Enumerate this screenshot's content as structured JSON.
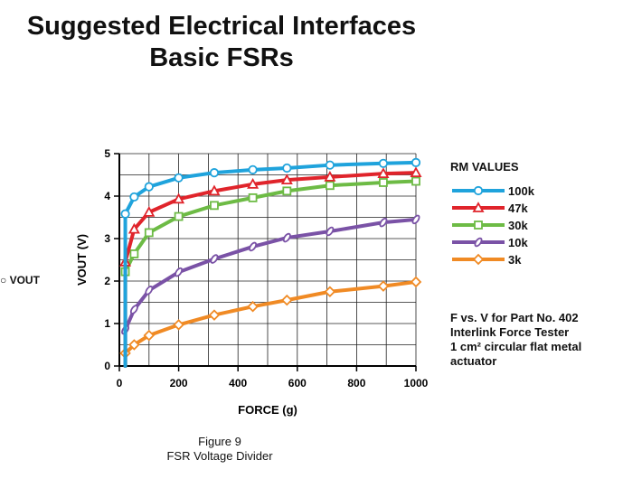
{
  "title_line1": "Suggested Electrical Interfaces",
  "title_line2": "Basic FSRs",
  "clipped_label": "VOUT",
  "chart_data": {
    "type": "line",
    "xlabel": "FORCE (g)",
    "ylabel": "VOUT (V)",
    "xlim": [
      0,
      1000
    ],
    "ylim": [
      0,
      5
    ],
    "xticks": [
      "0",
      "200",
      "400",
      "600",
      "800",
      "1000"
    ],
    "yticks": [
      "0",
      "1",
      "2",
      "3",
      "4",
      "5"
    ],
    "grid": true,
    "legend_title": "RM VALUES",
    "legend_position": "right",
    "series": [
      {
        "name": "100k",
        "color": "#1fa3dc",
        "marker": "circle",
        "x": [
          20,
          50,
          100,
          200,
          320,
          450,
          565,
          710,
          890,
          1000
        ],
        "y": [
          3.58,
          3.98,
          4.22,
          4.43,
          4.55,
          4.62,
          4.66,
          4.73,
          4.77,
          4.79
        ]
      },
      {
        "name": "47k",
        "color": "#e0242b",
        "marker": "triangle",
        "x": [
          20,
          50,
          100,
          200,
          320,
          450,
          565,
          710,
          890,
          1000
        ],
        "y": [
          2.45,
          3.22,
          3.62,
          3.93,
          4.12,
          4.28,
          4.38,
          4.45,
          4.53,
          4.55
        ]
      },
      {
        "name": "30k",
        "color": "#6dbb45",
        "marker": "square",
        "x": [
          20,
          50,
          100,
          200,
          320,
          450,
          565,
          710,
          890,
          1000
        ],
        "y": [
          2.22,
          2.64,
          3.14,
          3.52,
          3.78,
          3.96,
          4.12,
          4.25,
          4.32,
          4.35
        ]
      },
      {
        "name": "10k",
        "color": "#7a52a6",
        "marker": "ellipse",
        "x": [
          20,
          50,
          100,
          200,
          320,
          450,
          565,
          710,
          890,
          1000
        ],
        "y": [
          0.85,
          1.33,
          1.78,
          2.21,
          2.52,
          2.81,
          3.02,
          3.17,
          3.38,
          3.45
        ]
      },
      {
        "name": "3k",
        "color": "#f08a24",
        "marker": "diamond",
        "x": [
          20,
          50,
          100,
          200,
          320,
          450,
          565,
          710,
          890,
          1000
        ],
        "y": [
          0.3,
          0.5,
          0.72,
          0.97,
          1.2,
          1.4,
          1.55,
          1.75,
          1.88,
          1.98
        ]
      }
    ]
  },
  "note_lines": [
    "F vs. V for Part No. 402",
    "Interlink Force Tester",
    "1 cm² circular flat metal",
    "actuator"
  ],
  "caption_line1": "Figure 9",
  "caption_line2": "FSR Voltage Divider"
}
